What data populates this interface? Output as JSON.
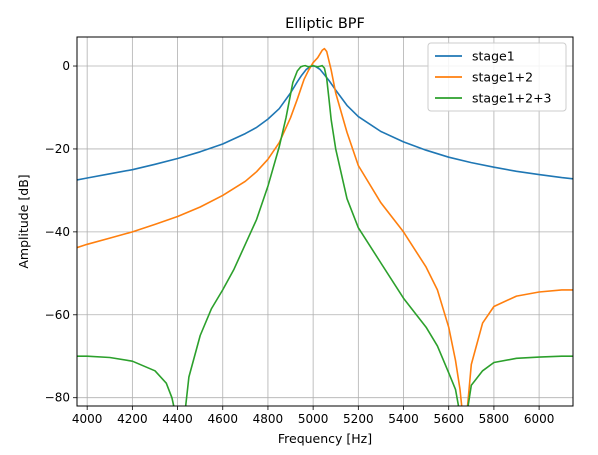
{
  "chart_data": {
    "type": "line",
    "title": "Elliptic BPF",
    "xlabel": "Frequency [Hz]",
    "ylabel": "Amplitude [dB]",
    "xlim": [
      3955,
      6150
    ],
    "ylim": [
      -82,
      7
    ],
    "xticks": [
      4000,
      4200,
      4400,
      4600,
      4800,
      5000,
      5200,
      5400,
      5600,
      5800,
      6000
    ],
    "yticks": [
      0,
      -20,
      -40,
      -60,
      -80
    ],
    "grid": true,
    "legend_position": "top-right",
    "series": [
      {
        "name": "stage1",
        "color": "#1f77b4",
        "x": [
          3955,
          4000,
          4100,
          4200,
          4300,
          4400,
          4500,
          4600,
          4700,
          4750,
          4800,
          4850,
          4900,
          4930,
          4950,
          4970,
          4990,
          5000,
          5010,
          5030,
          5050,
          5070,
          5100,
          5150,
          5200,
          5300,
          5400,
          5500,
          5600,
          5700,
          5800,
          5900,
          6000,
          6100,
          6150
        ],
        "y": [
          -27.5,
          -27,
          -26,
          -25,
          -23.7,
          -22.3,
          -20.7,
          -18.8,
          -16.3,
          -14.8,
          -12.8,
          -10.3,
          -6.5,
          -3.8,
          -2.2,
          -0.8,
          -0.1,
          0,
          -0.1,
          -0.8,
          -2.1,
          -3.5,
          -5.8,
          -9.5,
          -12.2,
          -15.8,
          -18.3,
          -20.3,
          -22,
          -23.3,
          -24.4,
          -25.4,
          -26.2,
          -26.9,
          -27.2
        ]
      },
      {
        "name": "stage1+2",
        "color": "#ff7f0e",
        "x": [
          3955,
          4000,
          4100,
          4200,
          4300,
          4400,
          4500,
          4600,
          4700,
          4750,
          4800,
          4850,
          4900,
          4930,
          4960,
          4980,
          5000,
          5020,
          5040,
          5050,
          5060,
          5080,
          5100,
          5150,
          5200,
          5300,
          5400,
          5500,
          5550,
          5600,
          5630,
          5650,
          5665,
          5670,
          5680,
          5700,
          5750,
          5800,
          5900,
          6000,
          6100,
          6150
        ],
        "y": [
          -43.8,
          -43,
          -41.5,
          -40,
          -38.2,
          -36.3,
          -34,
          -31.2,
          -27.8,
          -25.5,
          -22.5,
          -18.5,
          -12.5,
          -8,
          -3.2,
          -1,
          0.8,
          2,
          3.8,
          4.2,
          3.5,
          -1,
          -6.5,
          -16,
          -24,
          -33,
          -40,
          -48.5,
          -54,
          -63,
          -71,
          -78,
          -86,
          -88,
          -84,
          -72,
          -62,
          -58,
          -55.5,
          -54.5,
          -54,
          -54
        ]
      },
      {
        "name": "stage1+2+3",
        "color": "#2ca02c",
        "x": [
          3955,
          4000,
          4100,
          4200,
          4300,
          4350,
          4375,
          4385,
          4390,
          4430,
          4440,
          4450,
          4500,
          4550,
          4600,
          4650,
          4700,
          4750,
          4800,
          4850,
          4880,
          4910,
          4930,
          4945,
          4955,
          4965,
          4980,
          5000,
          5020,
          5040,
          5050,
          5060,
          5070,
          5080,
          5100,
          5150,
          5200,
          5300,
          5400,
          5500,
          5550,
          5600,
          5630,
          5650,
          5670,
          5680,
          5700,
          5750,
          5800,
          5900,
          6000,
          6100,
          6150
        ],
        "y": [
          -70,
          -70,
          -70.3,
          -71.2,
          -73.5,
          -76.5,
          -80,
          -82.5,
          -85,
          -85,
          -80,
          -75,
          -65,
          -58.5,
          -54,
          -49,
          -43,
          -37,
          -29,
          -19.5,
          -12.5,
          -4,
          -1.2,
          -0.2,
          0,
          0.1,
          -0.2,
          0.1,
          -0.2,
          0.1,
          -0.5,
          -3,
          -8,
          -13,
          -20,
          -32,
          -39,
          -47.5,
          -56,
          -63,
          -67.5,
          -74,
          -78,
          -84,
          -88,
          -84,
          -77,
          -73.5,
          -71.5,
          -70.5,
          -70.2,
          -70,
          -70
        ]
      }
    ]
  }
}
